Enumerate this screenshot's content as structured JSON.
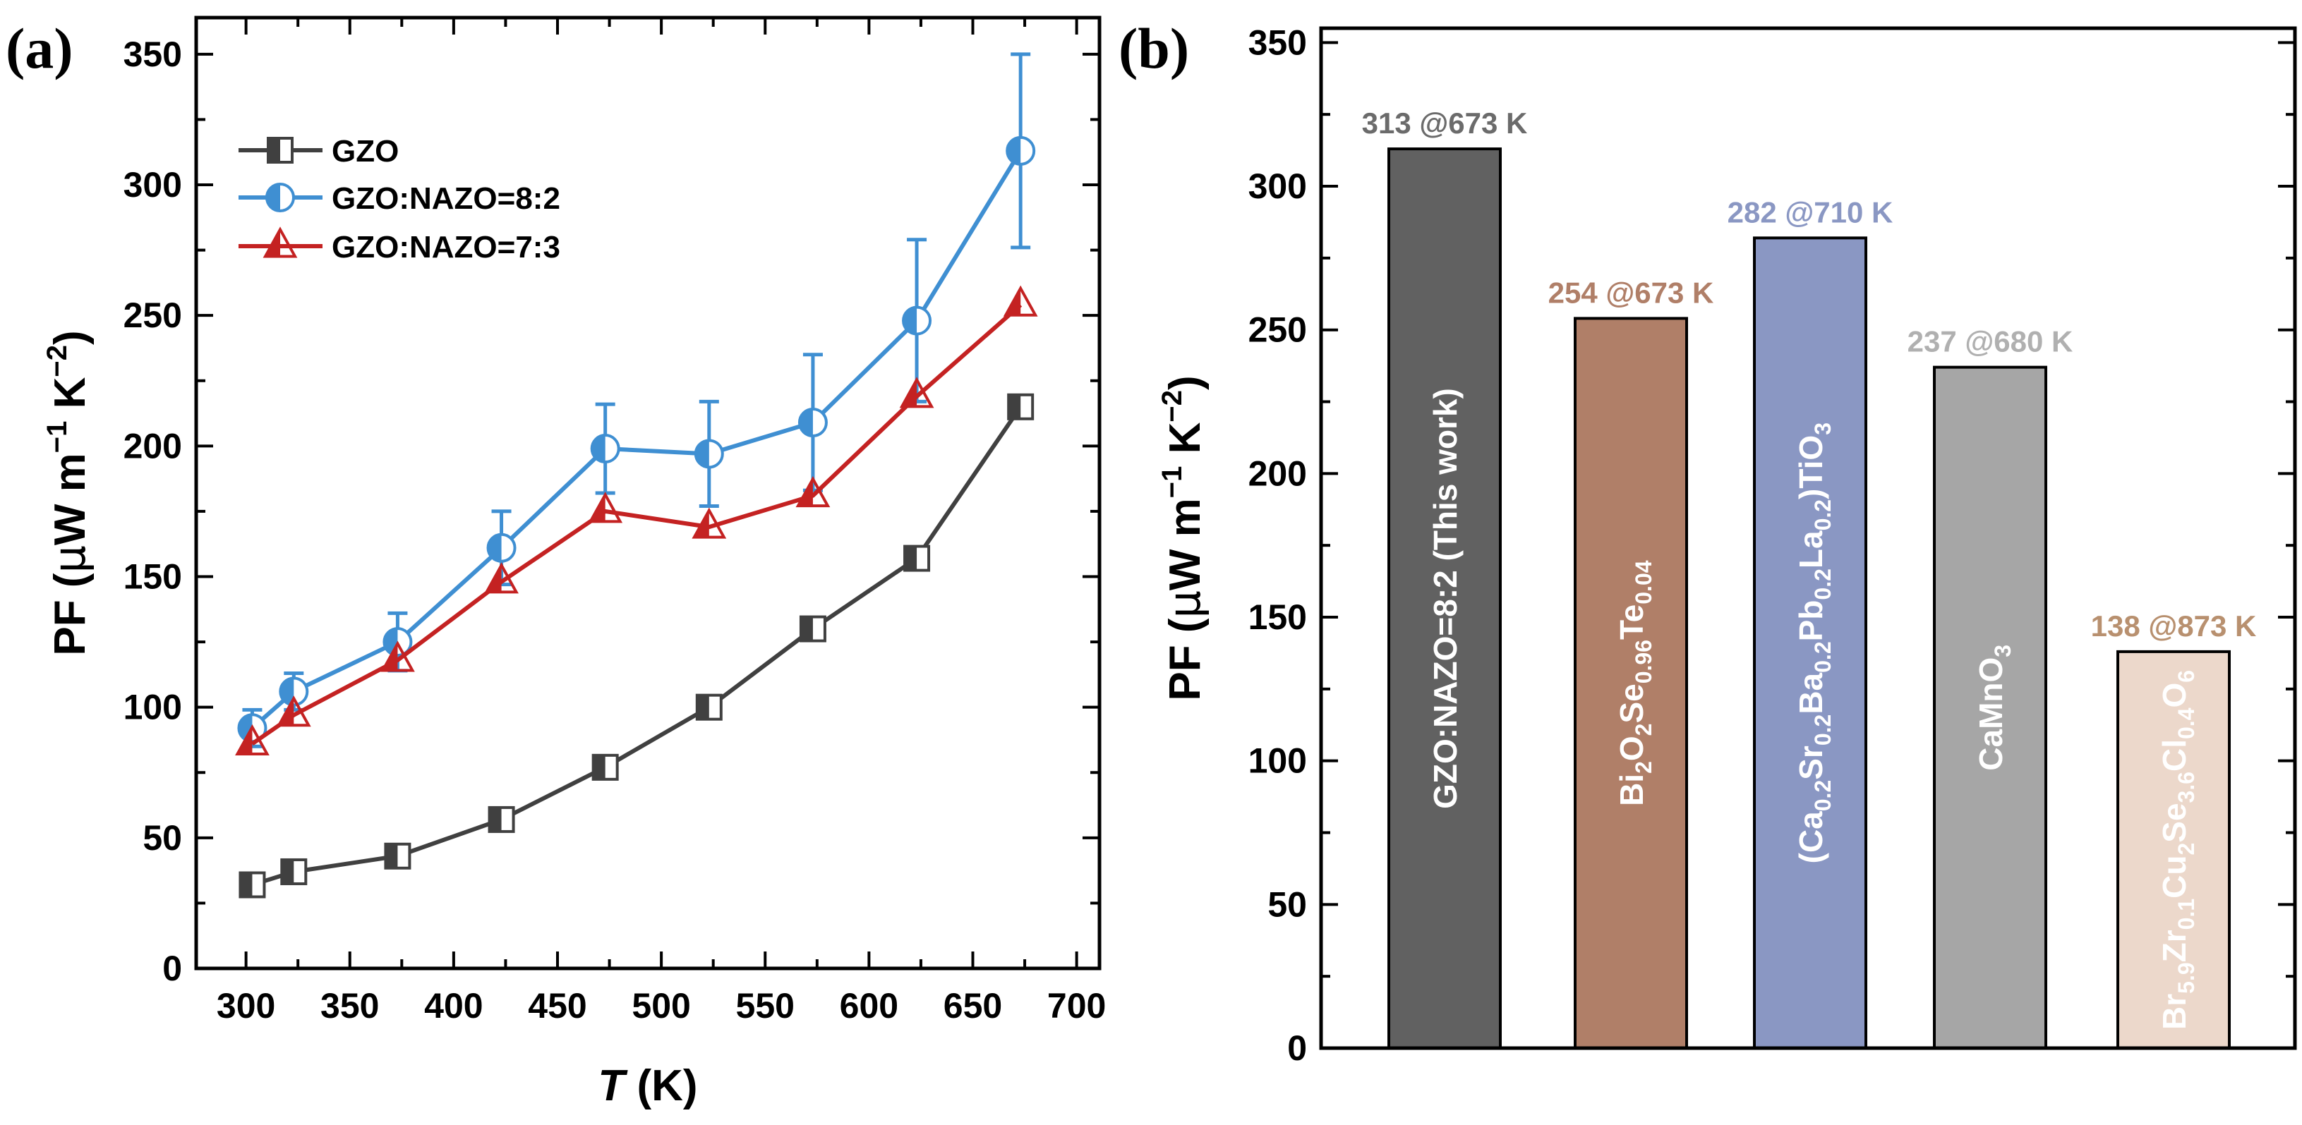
{
  "panels": {
    "a": "(a)",
    "b": "(b)"
  },
  "chart_data": [
    {
      "type": "line",
      "x": [
        303,
        323,
        373,
        423,
        473,
        523,
        573,
        623,
        673
      ],
      "xlabel_italic": "T",
      "xlabel_unit": " (K)",
      "ylabel": "PF (μW m⁻¹ K⁻²)",
      "xlim": [
        275,
        710
      ],
      "ylim": [
        0,
        365
      ],
      "xticks": [
        "300",
        "350",
        "400",
        "450",
        "500",
        "550",
        "600",
        "650",
        "700"
      ],
      "xtick_values": [
        300,
        350,
        400,
        450,
        500,
        550,
        600,
        650,
        700
      ],
      "yticks": [
        "0",
        "50",
        "100",
        "150",
        "200",
        "250",
        "300",
        "350"
      ],
      "ytick_values": [
        0,
        50,
        100,
        150,
        200,
        250,
        300,
        350
      ],
      "series": [
        {
          "name": "GZO",
          "color": "#404040",
          "marker": "square",
          "values": [
            32,
            37,
            43,
            57,
            77,
            100,
            130,
            157,
            215
          ]
        },
        {
          "name": "GZO:NAZO=8:2",
          "color": "#3f8fd2",
          "marker": "circle",
          "values": [
            92,
            106,
            125,
            161,
            199,
            197,
            209,
            248,
            313
          ],
          "errors": [
            7,
            7,
            11,
            14,
            17,
            20,
            26,
            31,
            37
          ]
        },
        {
          "name": "GZO:NAZO=7:3",
          "color": "#c42222",
          "marker": "triangle",
          "values": [
            86,
            97,
            118,
            148,
            175,
            169,
            181,
            219,
            254
          ]
        }
      ]
    },
    {
      "type": "bar",
      "ylabel": "PF (μW m⁻¹ K⁻²)",
      "ylim": [
        0,
        355
      ],
      "yticks": [
        "0",
        "50",
        "100",
        "150",
        "200",
        "250",
        "300",
        "350"
      ],
      "ytick_values": [
        0,
        50,
        100,
        150,
        200,
        250,
        300,
        350
      ],
      "bars": [
        {
          "value": 313,
          "top_label": "313 @673 K",
          "label": "GZO:NAZO=8:2 (This work)",
          "color": "#616161",
          "label_color": "#6b6b6b",
          "inner_fill": "#ffffff"
        },
        {
          "value": 254,
          "top_label": "254 @673 K",
          "label": "Bi2O2Se0.96Te0.04",
          "color": "#b07f68",
          "label_color": "#b07f68",
          "inner_fill": "#ffffff"
        },
        {
          "value": 282,
          "top_label": "282 @710 K",
          "label": "(Ca0.2Sr0.2Ba0.2Pb0.2La0.2)TiO3",
          "color": "#8a97c3",
          "label_color": "#8a97c3",
          "inner_fill": "#ffffff"
        },
        {
          "value": 237,
          "top_label": "237 @680 K",
          "label": "CaMnO3",
          "color": "#a6a6a6",
          "label_color": "#b0b0b0",
          "inner_fill": "#ffffff"
        },
        {
          "value": 138,
          "top_label": "138 @873 K",
          "label": "Br5.9Zr0.1Cu2Se3.6Cl0.4O6",
          "color": "#ecd8cb",
          "label_color": "#b8906f",
          "inner_fill": "#111111"
        }
      ]
    }
  ]
}
